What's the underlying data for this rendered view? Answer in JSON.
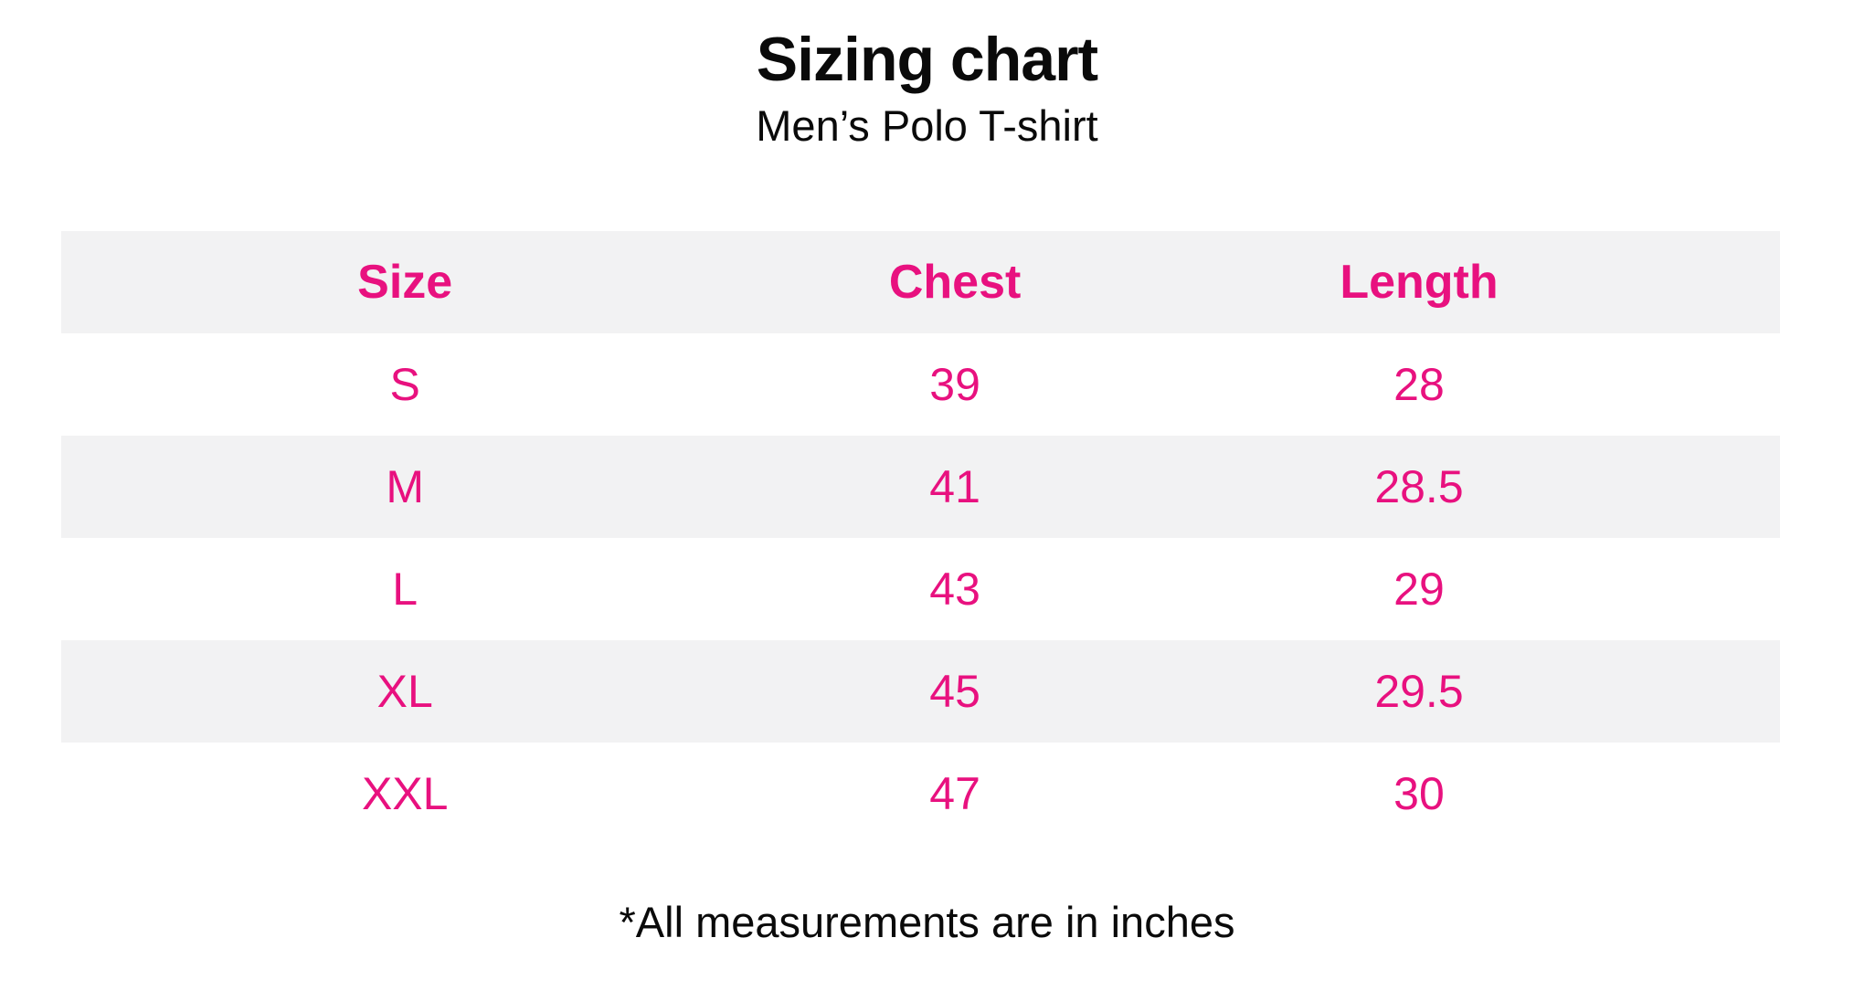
{
  "page": {
    "title": "Sizing chart",
    "subtitle": "Men’s Polo T-shirt",
    "footnote": "*All measurements are in inches"
  },
  "colors": {
    "accent_pink": "#E8117F",
    "row_stripe_gray": "#F2F2F3",
    "text_black": "#0A0A0A",
    "background": "#FFFFFF"
  },
  "table": {
    "headers": [
      "Size",
      "Chest",
      "Length"
    ],
    "rows": [
      {
        "size": "S",
        "chest": "39",
        "length": "28"
      },
      {
        "size": "M",
        "chest": "41",
        "length": "28.5"
      },
      {
        "size": "L",
        "chest": "43",
        "length": "29"
      },
      {
        "size": "XL",
        "chest": "45",
        "length": "29.5"
      },
      {
        "size": "XXL",
        "chest": "47",
        "length": "30"
      }
    ]
  },
  "chart_data": {
    "type": "table",
    "title": "Sizing chart",
    "subtitle": "Men’s Polo T-shirt",
    "columns": [
      "Size",
      "Chest",
      "Length"
    ],
    "rows": [
      [
        "S",
        39,
        28
      ],
      [
        "M",
        41,
        28.5
      ],
      [
        "L",
        43,
        29
      ],
      [
        "XL",
        45,
        29.5
      ],
      [
        "XXL",
        47,
        30
      ]
    ],
    "units": "inches",
    "note": "*All measurements are in inches",
    "layout": {
      "header_text_color": "#E8117F",
      "cell_text_color": "#E8117F",
      "striped_rows": [
        "header",
        "M",
        "XL"
      ],
      "stripe_color": "#F2F2F3"
    }
  }
}
